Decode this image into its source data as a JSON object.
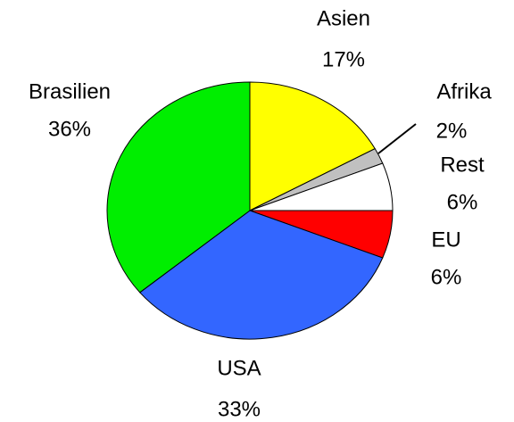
{
  "chart_data": {
    "type": "pie",
    "categories": [
      "Asien",
      "Afrika",
      "Rest",
      "EU",
      "USA",
      "Brasilien"
    ],
    "values": [
      17,
      2,
      6,
      6,
      33,
      36
    ],
    "value_labels": [
      "17%",
      "2%",
      "6%",
      "6%",
      "33%",
      "36%"
    ],
    "colors": [
      "#ffff00",
      "#c0c0c0",
      "#ffffff",
      "#ff0000",
      "#3366ff",
      "#00ee00"
    ]
  }
}
